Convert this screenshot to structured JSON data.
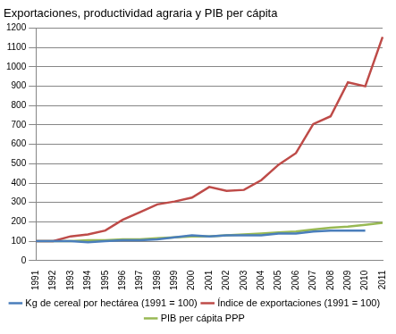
{
  "chart_data": {
    "type": "line",
    "title": "Exportaciones, productividad agraria y PIB per cápita",
    "categories": [
      "1991",
      "1992",
      "1993",
      "1994",
      "1995",
      "1996",
      "1997",
      "1998",
      "1999",
      "2000",
      "2001",
      "2002",
      "2003",
      "2004",
      "2005",
      "2006",
      "2007",
      "2008",
      "2009",
      "2010",
      "2011"
    ],
    "series": [
      {
        "name": "Kg de cereal por hectárea (1991 = 100)",
        "color": "#4a7ebb",
        "values": [
          100,
          100,
          100,
          95,
          100,
          105,
          105,
          110,
          120,
          130,
          125,
          130,
          130,
          130,
          140,
          140,
          150,
          155,
          155,
          155,
          null
        ]
      },
      {
        "name": "Índice de exportaciones (1991 = 100)",
        "color": "#be4b48",
        "values": [
          100,
          100,
          125,
          135,
          155,
          210,
          250,
          290,
          305,
          325,
          380,
          360,
          365,
          415,
          495,
          555,
          705,
          745,
          920,
          900,
          1155
        ]
      },
      {
        "name": "PIB per cápita PPP",
        "color": "#98b954",
        "values": [
          100,
          100,
          100,
          105,
          105,
          110,
          110,
          115,
          120,
          125,
          125,
          130,
          135,
          140,
          145,
          150,
          160,
          170,
          175,
          185,
          195
        ]
      }
    ],
    "ylim": [
      0,
      1200
    ],
    "yticks": [
      0,
      100,
      200,
      300,
      400,
      500,
      600,
      700,
      800,
      900,
      1000,
      1100,
      1200
    ],
    "grid": true,
    "legend": "bottom"
  }
}
